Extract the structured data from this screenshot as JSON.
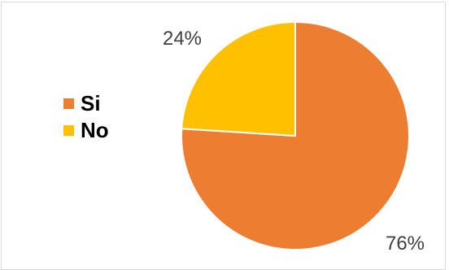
{
  "chart_data": {
    "type": "pie",
    "title": "",
    "categories": [
      "Si",
      "No"
    ],
    "values": [
      76,
      24
    ],
    "data_labels": [
      "76%",
      "24%"
    ],
    "colors": [
      "#ED7D31",
      "#FFC000"
    ],
    "legend_position": "left",
    "border_color": "#D9D9D9"
  }
}
